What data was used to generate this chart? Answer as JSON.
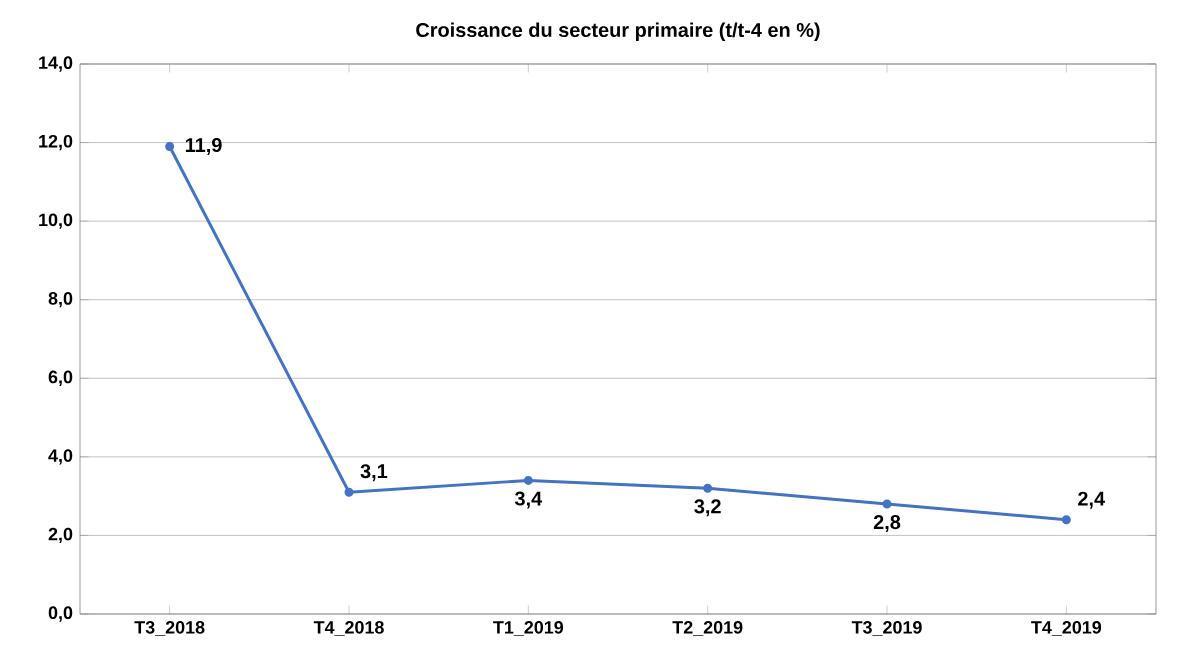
{
  "chart_data": {
    "type": "line",
    "title": "Croissance du secteur primaire (t/t-4 en %)",
    "categories": [
      "T3_2018",
      "T4_2018",
      "T1_2019",
      "T2_2019",
      "T3_2019",
      "T4_2019"
    ],
    "values": [
      11.9,
      3.1,
      3.4,
      3.2,
      2.8,
      2.4
    ],
    "value_labels": [
      "11,9",
      "3,1",
      "3,4",
      "3,2",
      "2,8",
      "2,4"
    ],
    "color": "#4472c4",
    "marker": "circle",
    "ylim": [
      0,
      14
    ],
    "yticks": [
      {
        "value": 0,
        "label": "0,0"
      },
      {
        "value": 2,
        "label": "2,0"
      },
      {
        "value": 4,
        "label": "4,0"
      },
      {
        "value": 6,
        "label": "6,0"
      },
      {
        "value": 8,
        "label": "8,0"
      },
      {
        "value": 10,
        "label": "10,0"
      },
      {
        "value": 12,
        "label": "12,0"
      },
      {
        "value": 14,
        "label": "14,0"
      }
    ],
    "grid": "y"
  }
}
